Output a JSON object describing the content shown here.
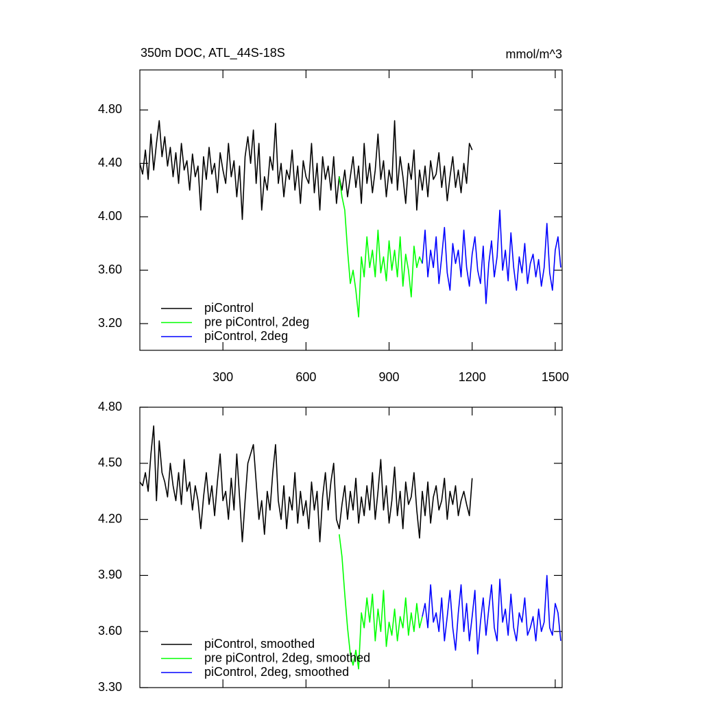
{
  "chart_data": [
    {
      "type": "line",
      "title": "350m DOC, ATL_44S-18S",
      "units": "mmol/m^3",
      "legend": "lower left",
      "xlim": [
        0,
        1525
      ],
      "xticks": [
        300,
        600,
        900,
        1200,
        1500
      ],
      "ylim": [
        3.0,
        5.1
      ],
      "yticks": [
        {
          "value": 3.2,
          "label": "3.20"
        },
        {
          "value": 3.6,
          "label": "3.60"
        },
        {
          "value": 4.0,
          "label": "4.00"
        },
        {
          "value": 4.4,
          "label": "4.40"
        },
        {
          "value": 4.8,
          "label": "4.80"
        }
      ],
      "series": [
        {
          "name": "piControl",
          "color": "#000000",
          "x": [
            0,
            10,
            20,
            30,
            40,
            50,
            60,
            70,
            80,
            90,
            100,
            110,
            120,
            130,
            140,
            150,
            160,
            170,
            180,
            190,
            200,
            210,
            220,
            230,
            240,
            250,
            260,
            270,
            280,
            290,
            300,
            310,
            320,
            330,
            340,
            350,
            360,
            370,
            380,
            390,
            400,
            410,
            420,
            430,
            440,
            450,
            460,
            470,
            480,
            490,
            500,
            510,
            520,
            530,
            540,
            550,
            560,
            570,
            580,
            590,
            600,
            610,
            620,
            630,
            640,
            650,
            660,
            670,
            680,
            690,
            700,
            710,
            720,
            730,
            740,
            750,
            760,
            770,
            780,
            790,
            800,
            810,
            820,
            830,
            840,
            850,
            860,
            870,
            880,
            890,
            900,
            910,
            920,
            930,
            940,
            950,
            960,
            970,
            980,
            990,
            1000,
            1010,
            1020,
            1030,
            1040,
            1050,
            1060,
            1070,
            1080,
            1090,
            1100,
            1110,
            1120,
            1130,
            1140,
            1150,
            1160,
            1170,
            1180,
            1190,
            1200
          ],
          "values": [
            4.4,
            4.32,
            4.5,
            4.28,
            4.62,
            4.35,
            4.55,
            4.72,
            4.45,
            4.6,
            4.38,
            4.52,
            4.3,
            4.48,
            4.25,
            4.55,
            4.35,
            4.42,
            4.2,
            4.47,
            4.3,
            4.38,
            4.05,
            4.45,
            4.28,
            4.52,
            4.32,
            4.4,
            4.18,
            4.48,
            4.35,
            4.25,
            4.55,
            4.3,
            4.42,
            4.15,
            4.38,
            3.98,
            4.45,
            4.6,
            4.4,
            4.65,
            4.25,
            4.55,
            4.05,
            4.3,
            4.2,
            4.45,
            4.35,
            4.7,
            4.25,
            4.4,
            4.15,
            4.35,
            4.28,
            4.5,
            4.2,
            4.38,
            4.1,
            4.42,
            4.3,
            4.25,
            4.55,
            4.18,
            4.4,
            4.05,
            4.45,
            4.28,
            4.38,
            4.2,
            4.45,
            4.1,
            4.3,
            4.2,
            4.35,
            4.15,
            4.3,
            4.45,
            4.22,
            4.38,
            4.1,
            4.55,
            4.25,
            4.4,
            4.18,
            4.35,
            4.62,
            4.28,
            4.42,
            4.15,
            4.35,
            4.25,
            4.72,
            4.2,
            4.45,
            4.3,
            4.1,
            4.4,
            4.28,
            4.5,
            4.05,
            4.35,
            4.2,
            4.38,
            4.15,
            4.42,
            4.28,
            4.32,
            4.48,
            4.22,
            4.38,
            4.12,
            4.3,
            4.45,
            4.22,
            4.35,
            4.18,
            4.4,
            4.25,
            4.55,
            4.5
          ]
        },
        {
          "name": "pre piControl, 2deg",
          "color": "#00ff00",
          "x": [
            720,
            730,
            740,
            750,
            760,
            770,
            780,
            790,
            800,
            810,
            820,
            830,
            840,
            850,
            860,
            870,
            880,
            890,
            900,
            910,
            920,
            930,
            940,
            950,
            960,
            970,
            980,
            990,
            1000,
            1010,
            1020
          ],
          "values": [
            4.3,
            4.15,
            4.05,
            3.75,
            3.5,
            3.6,
            3.45,
            3.25,
            3.7,
            3.55,
            3.85,
            3.62,
            3.75,
            3.55,
            3.9,
            3.58,
            3.7,
            3.52,
            3.82,
            3.6,
            3.75,
            3.55,
            3.85,
            3.48,
            3.72,
            3.6,
            3.4,
            3.78,
            3.62,
            3.7,
            3.65
          ]
        },
        {
          "name": "piControl, 2deg",
          "color": "#0000ff",
          "x": [
            1020,
            1030,
            1040,
            1050,
            1060,
            1070,
            1080,
            1090,
            1100,
            1110,
            1120,
            1130,
            1140,
            1150,
            1160,
            1170,
            1180,
            1190,
            1200,
            1210,
            1220,
            1230,
            1240,
            1250,
            1260,
            1270,
            1280,
            1290,
            1300,
            1310,
            1320,
            1330,
            1340,
            1350,
            1360,
            1370,
            1380,
            1390,
            1400,
            1410,
            1420,
            1430,
            1440,
            1450,
            1460,
            1470,
            1480,
            1490,
            1500,
            1510,
            1520
          ],
          "values": [
            3.65,
            3.9,
            3.55,
            3.75,
            3.62,
            3.85,
            3.5,
            3.7,
            3.92,
            3.58,
            3.45,
            3.8,
            3.65,
            3.75,
            3.55,
            3.9,
            3.62,
            3.48,
            3.72,
            3.85,
            3.6,
            3.5,
            3.78,
            3.35,
            3.65,
            3.82,
            3.55,
            3.7,
            4.05,
            3.6,
            3.75,
            3.52,
            3.88,
            3.62,
            3.45,
            3.7,
            3.58,
            3.8,
            3.5,
            3.65,
            3.72,
            3.55,
            3.68,
            3.48,
            3.62,
            3.95,
            3.58,
            3.45,
            3.75,
            3.85,
            3.62
          ]
        }
      ]
    },
    {
      "type": "line",
      "legend": "lower left",
      "xlim": [
        0,
        1525
      ],
      "xticks": [
        300,
        600,
        900,
        1200,
        1500
      ],
      "ylim": [
        3.3,
        4.8
      ],
      "yticks": [
        {
          "value": 3.3,
          "label": "3.30"
        },
        {
          "value": 3.6,
          "label": "3.60"
        },
        {
          "value": 3.9,
          "label": "3.90"
        },
        {
          "value": 4.2,
          "label": "4.20"
        },
        {
          "value": 4.5,
          "label": "4.50"
        },
        {
          "value": 4.8,
          "label": "4.80"
        }
      ],
      "series": [
        {
          "name": "piControl, smoothed",
          "color": "#000000",
          "x": [
            0,
            10,
            20,
            30,
            40,
            50,
            60,
            70,
            80,
            90,
            100,
            110,
            120,
            130,
            140,
            150,
            160,
            170,
            180,
            190,
            200,
            210,
            220,
            230,
            240,
            250,
            260,
            270,
            280,
            290,
            300,
            310,
            320,
            330,
            340,
            350,
            360,
            370,
            380,
            390,
            400,
            410,
            420,
            430,
            440,
            450,
            460,
            470,
            480,
            490,
            500,
            510,
            520,
            530,
            540,
            550,
            560,
            570,
            580,
            590,
            600,
            610,
            620,
            630,
            640,
            650,
            660,
            670,
            680,
            690,
            700,
            710,
            720,
            730,
            740,
            750,
            760,
            770,
            780,
            790,
            800,
            810,
            820,
            830,
            840,
            850,
            860,
            870,
            880,
            890,
            900,
            910,
            920,
            930,
            940,
            950,
            960,
            970,
            980,
            990,
            1000,
            1010,
            1020,
            1030,
            1040,
            1050,
            1060,
            1070,
            1080,
            1090,
            1100,
            1110,
            1120,
            1130,
            1140,
            1150,
            1160,
            1170,
            1180,
            1190,
            1200
          ],
          "values": [
            4.4,
            4.38,
            4.45,
            4.35,
            4.55,
            4.7,
            4.3,
            4.62,
            4.45,
            4.4,
            4.32,
            4.5,
            4.38,
            4.3,
            4.45,
            4.28,
            4.52,
            4.35,
            4.4,
            4.25,
            4.38,
            4.3,
            4.15,
            4.32,
            4.45,
            4.28,
            4.38,
            4.22,
            4.4,
            4.55,
            4.3,
            4.35,
            4.2,
            4.42,
            4.25,
            4.55,
            4.32,
            4.08,
            4.3,
            4.5,
            4.55,
            4.6,
            4.4,
            4.2,
            4.3,
            4.12,
            4.35,
            4.25,
            4.45,
            4.6,
            4.3,
            4.2,
            4.38,
            4.15,
            4.32,
            4.25,
            4.45,
            4.18,
            4.35,
            4.22,
            4.3,
            4.15,
            4.4,
            4.25,
            4.35,
            4.08,
            4.32,
            4.45,
            4.25,
            4.4,
            4.5,
            4.2,
            4.15,
            4.28,
            4.38,
            4.2,
            4.35,
            4.25,
            4.42,
            4.18,
            4.32,
            4.22,
            4.38,
            4.25,
            4.45,
            4.2,
            4.35,
            4.52,
            4.25,
            4.38,
            4.18,
            4.3,
            4.48,
            4.22,
            4.35,
            4.15,
            4.4,
            4.28,
            4.32,
            4.45,
            4.25,
            4.1,
            4.35,
            4.22,
            4.4,
            4.18,
            4.32,
            4.38,
            4.25,
            4.3,
            4.42,
            4.2,
            4.35,
            4.28,
            4.38,
            4.22,
            4.3,
            4.35,
            4.28,
            4.22,
            4.42
          ]
        },
        {
          "name": "pre piControl, 2deg, smoothed",
          "color": "#00ff00",
          "x": [
            720,
            730,
            740,
            750,
            760,
            770,
            780,
            790,
            800,
            810,
            820,
            830,
            840,
            850,
            860,
            870,
            880,
            890,
            900,
            910,
            920,
            930,
            940,
            950,
            960,
            970,
            980,
            990,
            1000,
            1010,
            1020
          ],
          "values": [
            4.12,
            4.0,
            3.8,
            3.62,
            3.48,
            3.42,
            3.5,
            3.4,
            3.7,
            3.62,
            3.78,
            3.65,
            3.8,
            3.55,
            3.72,
            3.6,
            3.82,
            3.52,
            3.65,
            3.58,
            3.72,
            3.55,
            3.68,
            3.62,
            3.78,
            3.58,
            3.7,
            3.6,
            3.75,
            3.62,
            3.68
          ]
        },
        {
          "name": "piControl, 2deg, smoothed",
          "color": "#0000ff",
          "x": [
            1020,
            1030,
            1040,
            1050,
            1060,
            1070,
            1080,
            1090,
            1100,
            1110,
            1120,
            1130,
            1140,
            1150,
            1160,
            1170,
            1180,
            1190,
            1200,
            1210,
            1220,
            1230,
            1240,
            1250,
            1260,
            1270,
            1280,
            1290,
            1300,
            1310,
            1320,
            1330,
            1340,
            1350,
            1360,
            1370,
            1380,
            1390,
            1400,
            1410,
            1420,
            1430,
            1440,
            1450,
            1460,
            1470,
            1480,
            1490,
            1500,
            1510,
            1520
          ],
          "values": [
            3.68,
            3.75,
            3.62,
            3.85,
            3.65,
            3.7,
            3.6,
            3.78,
            3.55,
            3.68,
            3.82,
            3.62,
            3.5,
            3.7,
            3.85,
            3.6,
            3.75,
            3.55,
            3.68,
            3.82,
            3.48,
            3.65,
            3.78,
            3.58,
            3.72,
            3.85,
            3.62,
            3.55,
            3.88,
            3.65,
            3.72,
            3.58,
            3.8,
            3.62,
            3.55,
            3.7,
            3.65,
            3.78,
            3.58,
            3.62,
            3.68,
            3.55,
            3.72,
            3.6,
            3.65,
            3.9,
            3.62,
            3.58,
            3.75,
            3.7,
            3.55
          ]
        }
      ]
    }
  ]
}
